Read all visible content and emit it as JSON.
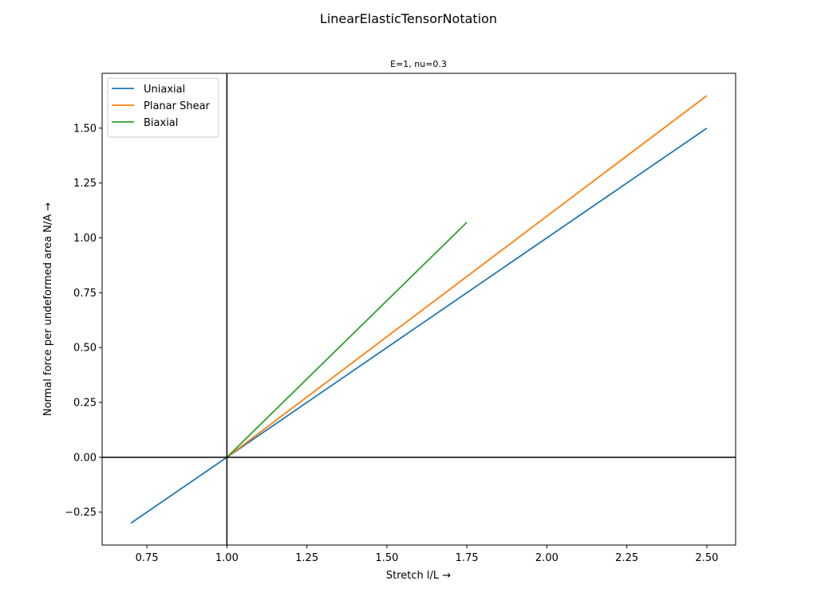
{
  "chart_data": {
    "type": "line",
    "title": "LinearElasticTensorNotation",
    "subtitle": "E=1, nu=0.3",
    "xlabel": "Stretch l/L →",
    "ylabel": "Normal force per undeformed area N/A →",
    "xlim": [
      0.61,
      2.59
    ],
    "ylim": [
      -0.4,
      1.75
    ],
    "xticks": [
      0.75,
      1.0,
      1.25,
      1.5,
      1.75,
      2.0,
      2.25,
      2.5
    ],
    "xtick_labels": [
      "0.75",
      "1.00",
      "1.25",
      "1.50",
      "1.75",
      "2.00",
      "2.25",
      "2.50"
    ],
    "yticks": [
      -0.25,
      0.0,
      0.25,
      0.5,
      0.75,
      1.0,
      1.25,
      1.5
    ],
    "ytick_labels": [
      "−0.25",
      "0.00",
      "0.25",
      "0.50",
      "0.75",
      "1.00",
      "1.25",
      "1.50"
    ],
    "grid": false,
    "legend_position": "top-left",
    "reference_lines": {
      "x": 1.0,
      "y": 0.0,
      "color": "#000000"
    },
    "series": [
      {
        "name": "Uniaxial",
        "color": "#1f77b4",
        "x": [
          0.7,
          2.5
        ],
        "y": [
          -0.3,
          1.5
        ]
      },
      {
        "name": "Planar Shear",
        "color": "#ff7f0e",
        "x": [
          1.0,
          2.5
        ],
        "y": [
          0.0,
          1.648
        ]
      },
      {
        "name": "Biaxial",
        "color": "#2ca02c",
        "x": [
          1.0,
          1.75
        ],
        "y": [
          0.0,
          1.071
        ]
      }
    ]
  }
}
